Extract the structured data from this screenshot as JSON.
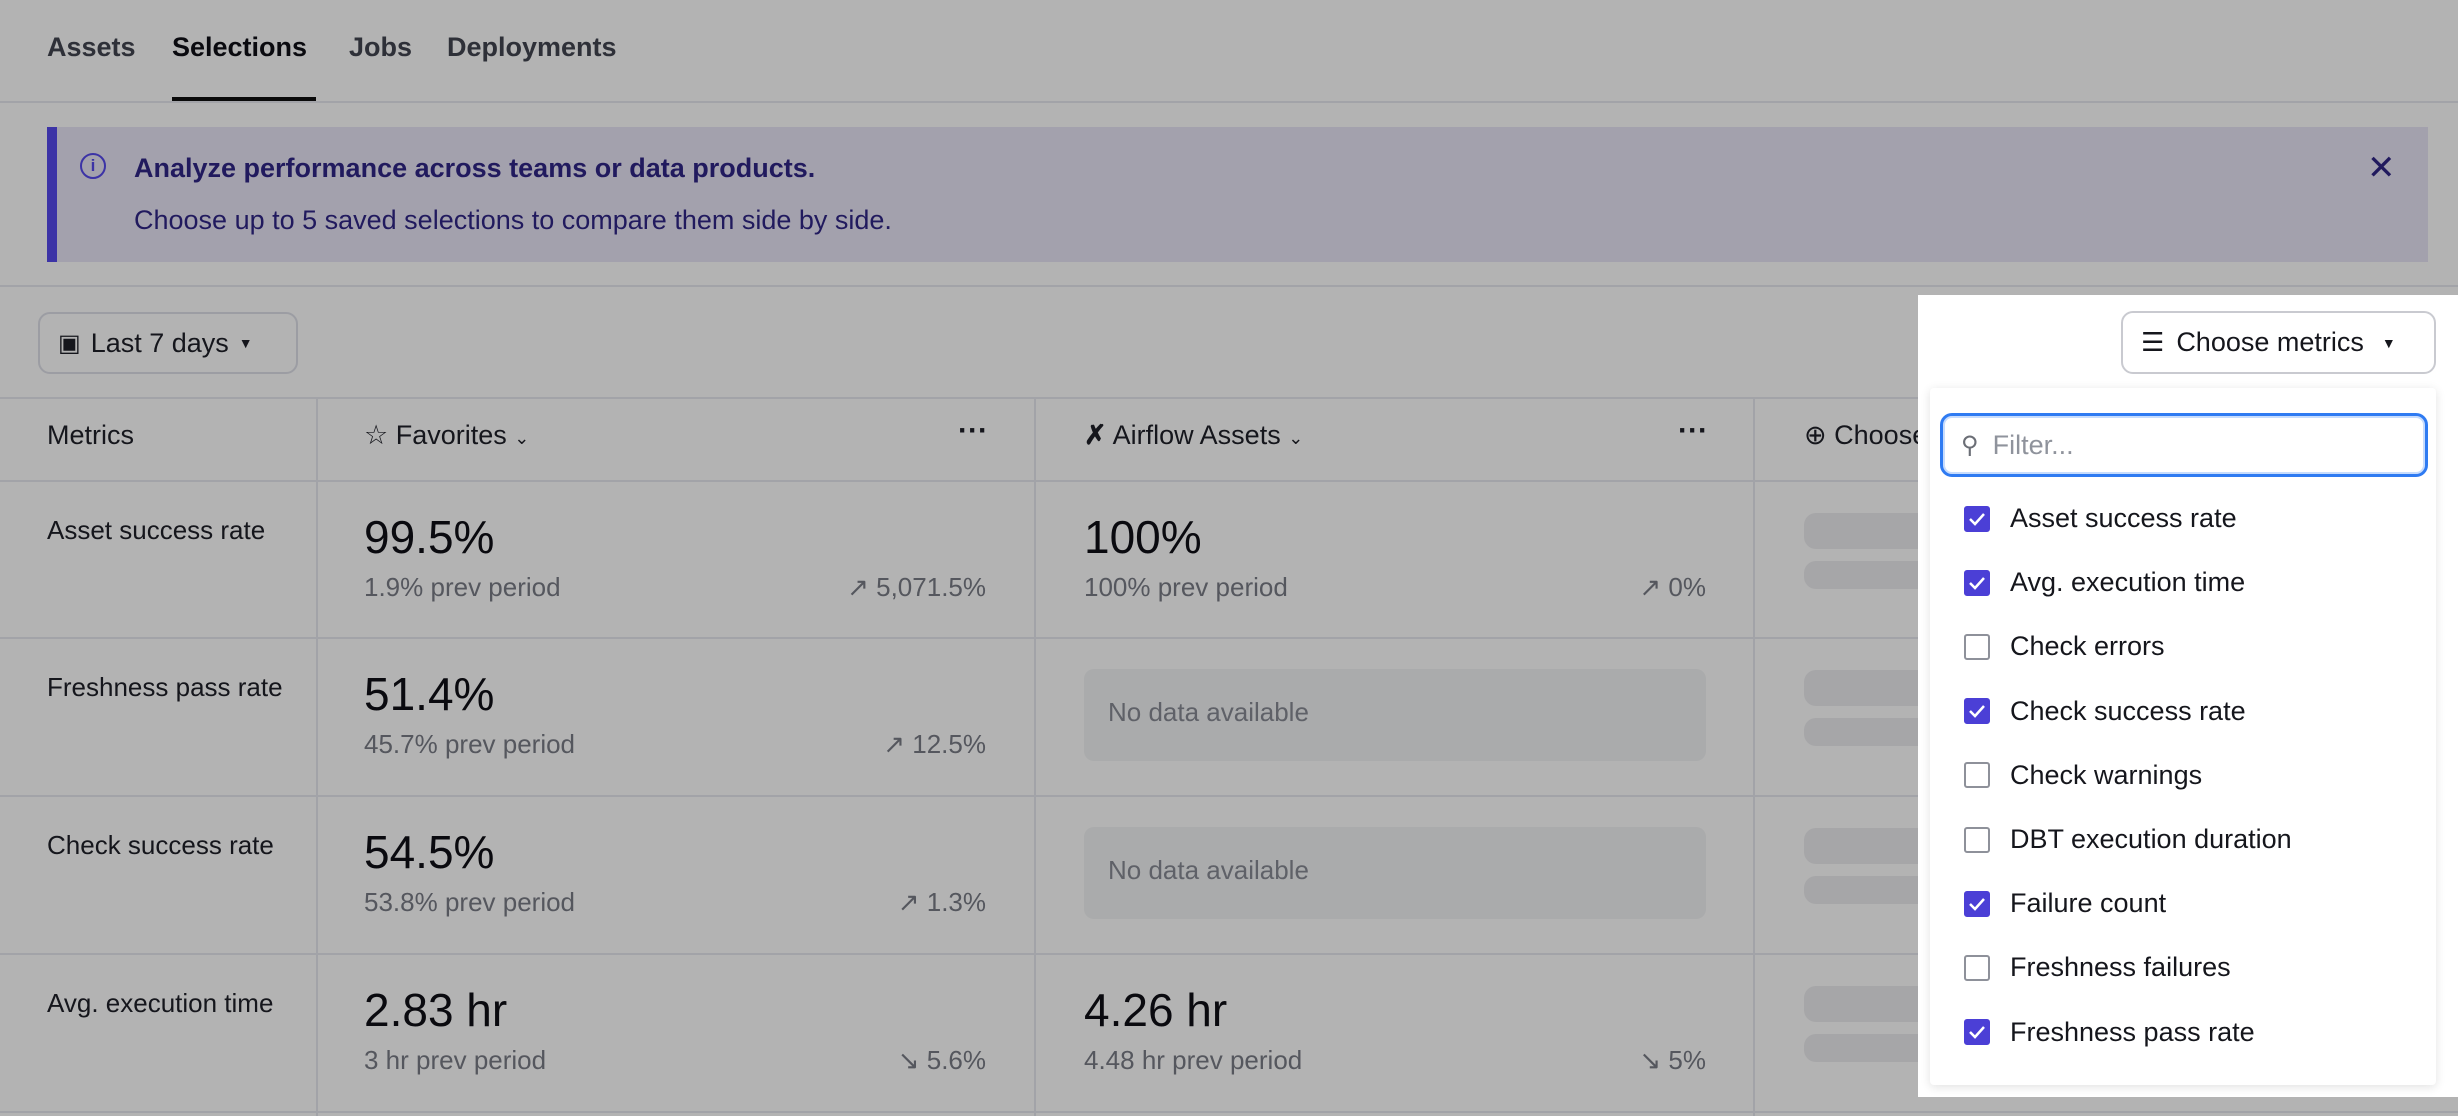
{
  "tabs": [
    {
      "label": "Assets"
    },
    {
      "label": "Selections",
      "active": true
    },
    {
      "label": "Jobs"
    },
    {
      "label": "Deployments"
    }
  ],
  "banner": {
    "title": "Analyze performance across teams or data products.",
    "text": "Choose up to 5 saved selections to compare them side by side.",
    "icon": "info-icon"
  },
  "date_range": {
    "label": "Last 7 days"
  },
  "choose_metrics": {
    "label": "Choose metrics"
  },
  "table": {
    "header": {
      "metrics": "Metrics",
      "col1": "Favorites",
      "col2": "Airflow Assets",
      "col3": "Choose"
    },
    "rows": [
      {
        "label": "Asset success rate",
        "c1": {
          "value": "99.5%",
          "prev": "1.9% prev period",
          "delta": "5,071.5%",
          "trend": "up"
        },
        "c2": {
          "value": "100%",
          "prev": "100% prev period",
          "delta": "0%",
          "trend": "up"
        }
      },
      {
        "label": "Freshness pass rate",
        "c1": {
          "value": "51.4%",
          "prev": "45.7% prev period",
          "delta": "12.5%",
          "trend": "up"
        },
        "c2": {
          "nodata": "No data available"
        }
      },
      {
        "label": "Check success rate",
        "c1": {
          "value": "54.5%",
          "prev": "53.8% prev period",
          "delta": "1.3%",
          "trend": "up"
        },
        "c2": {
          "nodata": "No data available"
        }
      },
      {
        "label": "Avg. execution time",
        "c1": {
          "value": "2.83 hr",
          "prev": "3 hr prev period",
          "delta": "5.6%",
          "trend": "down"
        },
        "c2": {
          "value": "4.26 hr",
          "prev": "4.48 hr prev period",
          "delta": "5%",
          "trend": "down"
        }
      }
    ]
  },
  "dropdown": {
    "filter_placeholder": "Filter...",
    "items": [
      {
        "label": "Asset success rate",
        "checked": true
      },
      {
        "label": "Avg. execution time",
        "checked": true
      },
      {
        "label": "Check errors",
        "checked": false
      },
      {
        "label": "Check success rate",
        "checked": true
      },
      {
        "label": "Check warnings",
        "checked": false
      },
      {
        "label": "DBT execution duration",
        "checked": false
      },
      {
        "label": "Failure count",
        "checked": true
      },
      {
        "label": "Freshness failures",
        "checked": false
      },
      {
        "label": "Freshness pass rate",
        "checked": true
      }
    ]
  },
  "colors": {
    "accent": "#4b3fd6",
    "focus": "#2f7bf2",
    "banner_border": "#3c33a6"
  }
}
